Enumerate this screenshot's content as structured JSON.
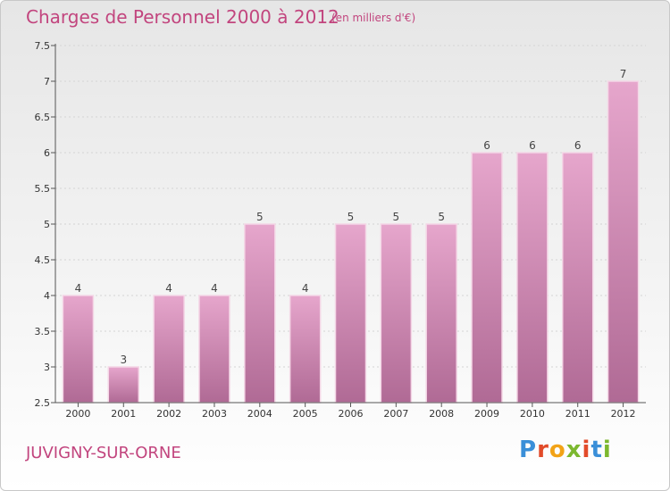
{
  "header": {
    "title": "Charges de Personnel 2000 à 2012",
    "subtitle": "(en milliers d'€)"
  },
  "footer": {
    "commune": "JUVIGNY-SUR-ORNE",
    "logo_letters": [
      "P",
      "r",
      "o",
      "x",
      "i",
      "t",
      "i"
    ],
    "logo_colors": [
      "#3a8fd8",
      "#e24b2a",
      "#f2a317",
      "#7cb82f",
      "#e24b2a",
      "#3a8fd8",
      "#7cb82f"
    ]
  },
  "colors": {
    "bar_top": "#e6a6cc",
    "bar_bottom": "#b06a95",
    "bar_border": "#f4d6e6",
    "text_accent": "#c2457e"
  },
  "chart_data": {
    "type": "bar",
    "categories": [
      "2000",
      "2001",
      "2002",
      "2003",
      "2004",
      "2005",
      "2006",
      "2007",
      "2008",
      "2009",
      "2010",
      "2011",
      "2012"
    ],
    "values": [
      4,
      3,
      4,
      4,
      5,
      4,
      5,
      5,
      5,
      6,
      6,
      6,
      7
    ],
    "title": "Charges de Personnel 2000 à 2012",
    "xlabel": "",
    "ylabel": "",
    "ylim": [
      2.5,
      7.5
    ],
    "yticks": [
      "2.5",
      "3",
      "3.5",
      "4",
      "4.5",
      "5",
      "5.5",
      "6",
      "6.5",
      "7",
      "7.5"
    ],
    "grid": true,
    "legend": "none"
  }
}
